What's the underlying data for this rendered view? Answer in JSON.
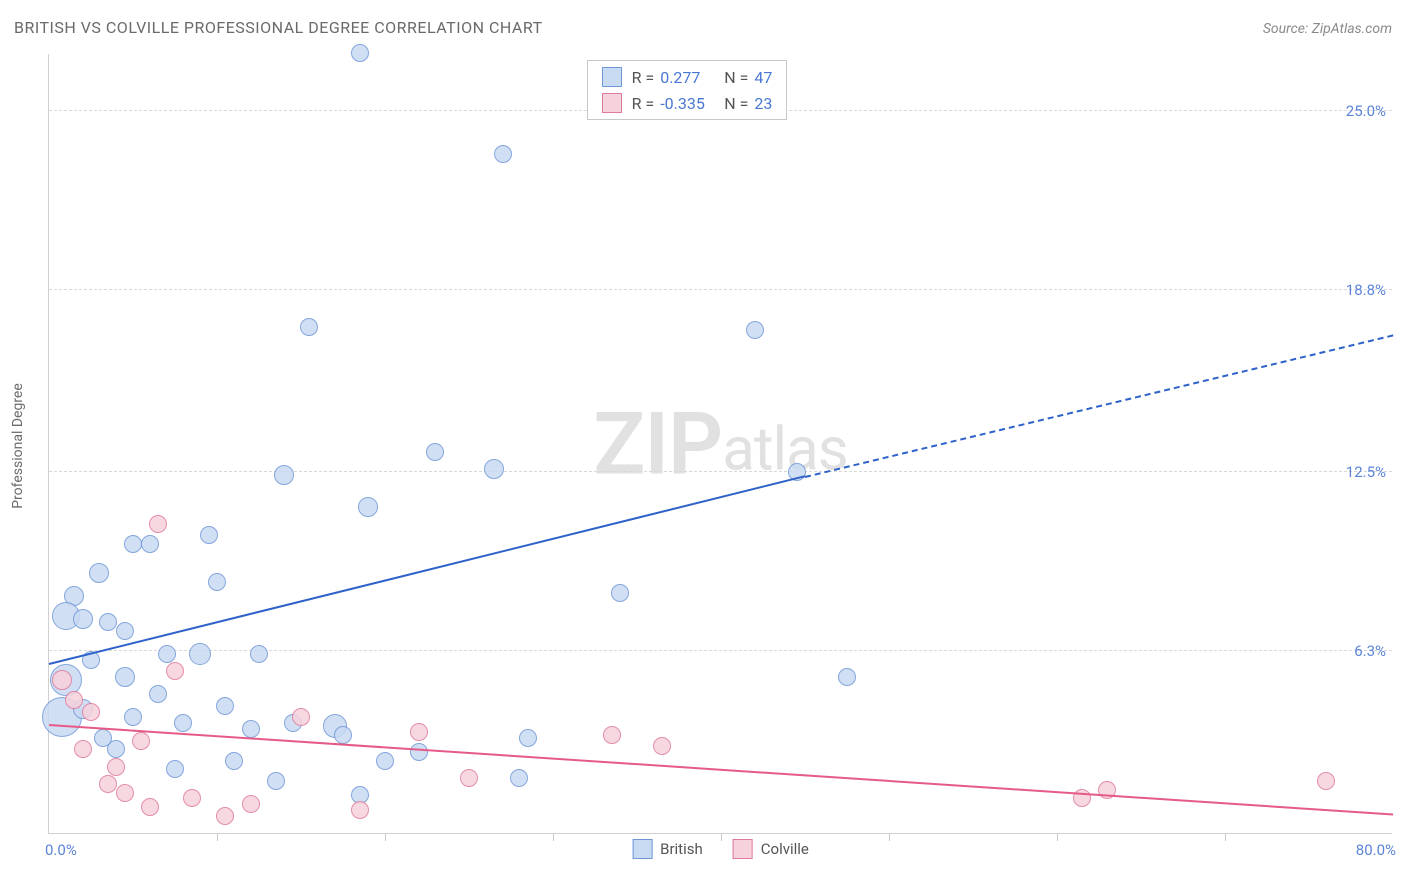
{
  "title": "BRITISH VS COLVILLE PROFESSIONAL DEGREE CORRELATION CHART",
  "source": "Source: ZipAtlas.com",
  "watermark_big": "ZIP",
  "watermark_small": "atlas",
  "chart": {
    "type": "scatter",
    "ylabel": "Professional Degree",
    "xlim": [
      0,
      80
    ],
    "ylim": [
      0,
      27
    ],
    "xlim_labels": [
      "0.0%",
      "80.0%"
    ],
    "ytick_values": [
      6.3,
      12.5,
      18.8,
      25.0
    ],
    "ytick_labels": [
      "6.3%",
      "12.5%",
      "18.8%",
      "25.0%"
    ],
    "xtick_values": [
      10,
      20,
      30,
      40,
      50,
      60,
      70
    ],
    "grid_color": "#d8d8d8",
    "background_color": "#ffffff",
    "series": [
      {
        "name": "British",
        "fill": "#c9daf3",
        "stroke": "#6f97d6",
        "trend_color": "#2e62c9",
        "marker_r": 9,
        "R": "0.277",
        "N": "47",
        "trend": {
          "x1": 0,
          "y1": 5.8,
          "x2_solid": 45,
          "y2_solid": 12.3,
          "x2_dash": 80,
          "y2_dash": 17.2
        },
        "points": [
          {
            "x": 18.5,
            "y": 27.0,
            "r": 9
          },
          {
            "x": 27.0,
            "y": 23.5,
            "r": 9
          },
          {
            "x": 15.5,
            "y": 17.5,
            "r": 9
          },
          {
            "x": 42.0,
            "y": 17.4,
            "r": 9
          },
          {
            "x": 26.5,
            "y": 12.6,
            "r": 10
          },
          {
            "x": 44.5,
            "y": 12.5,
            "r": 9
          },
          {
            "x": 23.0,
            "y": 13.2,
            "r": 9
          },
          {
            "x": 19.0,
            "y": 11.3,
            "r": 10
          },
          {
            "x": 14.0,
            "y": 12.4,
            "r": 10
          },
          {
            "x": 5.0,
            "y": 10.0,
            "r": 9
          },
          {
            "x": 6.0,
            "y": 10.0,
            "r": 9
          },
          {
            "x": 9.5,
            "y": 10.3,
            "r": 9
          },
          {
            "x": 10.0,
            "y": 8.7,
            "r": 9
          },
          {
            "x": 3.0,
            "y": 9.0,
            "r": 10
          },
          {
            "x": 1.5,
            "y": 8.2,
            "r": 10
          },
          {
            "x": 1.0,
            "y": 7.5,
            "r": 14
          },
          {
            "x": 2.0,
            "y": 7.4,
            "r": 10
          },
          {
            "x": 3.5,
            "y": 7.3,
            "r": 9
          },
          {
            "x": 4.5,
            "y": 7.0,
            "r": 9
          },
          {
            "x": 7.0,
            "y": 6.2,
            "r": 9
          },
          {
            "x": 9.0,
            "y": 6.2,
            "r": 11
          },
          {
            "x": 12.5,
            "y": 6.2,
            "r": 9
          },
          {
            "x": 2.5,
            "y": 6.0,
            "r": 9
          },
          {
            "x": 4.5,
            "y": 5.4,
            "r": 10
          },
          {
            "x": 1.0,
            "y": 5.3,
            "r": 16
          },
          {
            "x": 6.5,
            "y": 4.8,
            "r": 9
          },
          {
            "x": 0.8,
            "y": 4.0,
            "r": 20
          },
          {
            "x": 2.0,
            "y": 4.3,
            "r": 10
          },
          {
            "x": 5.0,
            "y": 4.0,
            "r": 9
          },
          {
            "x": 8.0,
            "y": 3.8,
            "r": 9
          },
          {
            "x": 10.5,
            "y": 4.4,
            "r": 9
          },
          {
            "x": 12.0,
            "y": 3.6,
            "r": 9
          },
          {
            "x": 14.5,
            "y": 3.8,
            "r": 9
          },
          {
            "x": 17.0,
            "y": 3.7,
            "r": 12
          },
          {
            "x": 17.5,
            "y": 3.4,
            "r": 9
          },
          {
            "x": 28.5,
            "y": 3.3,
            "r": 9
          },
          {
            "x": 34.0,
            "y": 8.3,
            "r": 9
          },
          {
            "x": 47.5,
            "y": 5.4,
            "r": 9
          },
          {
            "x": 4.0,
            "y": 2.9,
            "r": 9
          },
          {
            "x": 7.5,
            "y": 2.2,
            "r": 9
          },
          {
            "x": 13.5,
            "y": 1.8,
            "r": 9
          },
          {
            "x": 18.5,
            "y": 1.3,
            "r": 9
          },
          {
            "x": 20.0,
            "y": 2.5,
            "r": 9
          },
          {
            "x": 28.0,
            "y": 1.9,
            "r": 9
          },
          {
            "x": 22.0,
            "y": 2.8,
            "r": 9
          },
          {
            "x": 3.2,
            "y": 3.3,
            "r": 9
          },
          {
            "x": 11.0,
            "y": 2.5,
            "r": 9
          }
        ]
      },
      {
        "name": "Colville",
        "fill": "#f6d2dc",
        "stroke": "#e07a9a",
        "trend_color": "#e65a88",
        "marker_r": 9,
        "R": "-0.335",
        "N": "23",
        "trend": {
          "x1": 0,
          "y1": 3.7,
          "x2_solid": 80,
          "y2_solid": 0.6,
          "x2_dash": 80,
          "y2_dash": 0.6
        },
        "points": [
          {
            "x": 6.5,
            "y": 10.7,
            "r": 9
          },
          {
            "x": 0.8,
            "y": 5.3,
            "r": 10
          },
          {
            "x": 1.5,
            "y": 4.6,
            "r": 9
          },
          {
            "x": 2.5,
            "y": 4.2,
            "r": 9
          },
          {
            "x": 7.5,
            "y": 5.6,
            "r": 9
          },
          {
            "x": 15.0,
            "y": 4.0,
            "r": 9
          },
          {
            "x": 22.0,
            "y": 3.5,
            "r": 9
          },
          {
            "x": 33.5,
            "y": 3.4,
            "r": 9
          },
          {
            "x": 36.5,
            "y": 3.0,
            "r": 9
          },
          {
            "x": 4.0,
            "y": 2.3,
            "r": 9
          },
          {
            "x": 4.5,
            "y": 1.4,
            "r": 9
          },
          {
            "x": 8.5,
            "y": 1.2,
            "r": 9
          },
          {
            "x": 10.5,
            "y": 0.6,
            "r": 9
          },
          {
            "x": 12.0,
            "y": 1.0,
            "r": 9
          },
          {
            "x": 18.5,
            "y": 0.8,
            "r": 9
          },
          {
            "x": 25.0,
            "y": 1.9,
            "r": 9
          },
          {
            "x": 61.5,
            "y": 1.2,
            "r": 9
          },
          {
            "x": 63.0,
            "y": 1.5,
            "r": 9
          },
          {
            "x": 76.0,
            "y": 1.8,
            "r": 9
          },
          {
            "x": 2.0,
            "y": 2.9,
            "r": 9
          },
          {
            "x": 5.5,
            "y": 3.2,
            "r": 9
          },
          {
            "x": 3.5,
            "y": 1.7,
            "r": 9
          },
          {
            "x": 6.0,
            "y": 0.9,
            "r": 9
          }
        ]
      }
    ]
  }
}
